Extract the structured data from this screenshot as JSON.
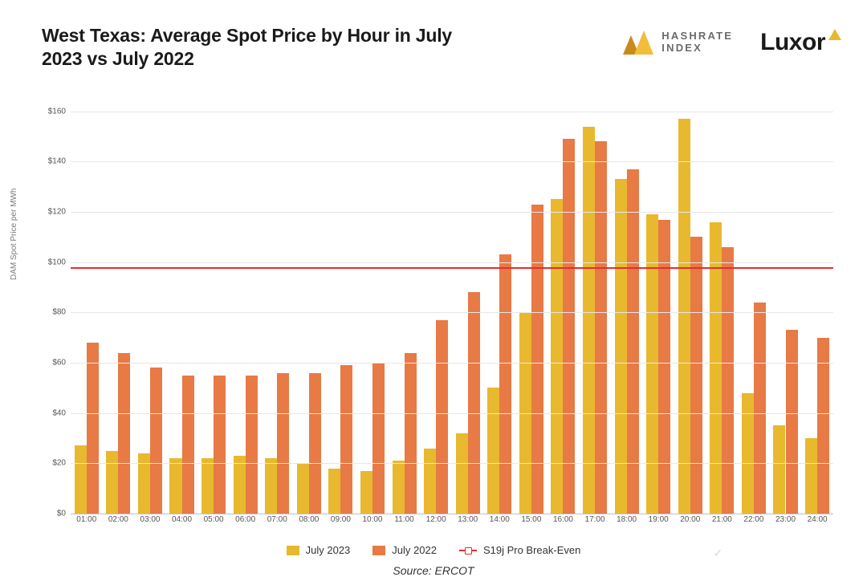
{
  "header": {
    "title": "West Texas: Average Spot Price by Hour in July 2023 vs July 2022",
    "hashrate_index_label_line1": "HASHRATE",
    "hashrate_index_label_line2": "INDEX",
    "luxor_label": "Luxor"
  },
  "chart": {
    "type": "bar",
    "ylabel": "DAM Spot Price per MWh",
    "ylim": [
      0,
      170
    ],
    "ytick_step": 20,
    "ytick_prefix": "$",
    "grid_color": "#e7e7e7",
    "background_color": "#ffffff",
    "categories": [
      "01:00",
      "02:00",
      "03:00",
      "04:00",
      "05:00",
      "06:00",
      "07:00",
      "08:00",
      "09:00",
      "10:00",
      "11:00",
      "12:00",
      "13:00",
      "14:00",
      "15:00",
      "16:00",
      "17:00",
      "18:00",
      "19:00",
      "20:00",
      "21:00",
      "22:00",
      "23:00",
      "24:00"
    ],
    "series": [
      {
        "name": "July 2023",
        "color": "#e8b92e",
        "values": [
          27,
          25,
          24,
          22,
          22,
          23,
          22,
          20,
          18,
          17,
          21,
          26,
          32,
          50,
          80,
          125,
          154,
          133,
          119,
          157,
          116,
          48,
          35,
          30
        ]
      },
      {
        "name": "July 2022",
        "color": "#e77a45",
        "values": [
          68,
          64,
          58,
          55,
          55,
          55,
          56,
          56,
          59,
          60,
          64,
          77,
          88,
          103,
          123,
          149,
          148,
          137,
          117,
          110,
          106,
          84,
          73,
          70
        ]
      }
    ],
    "reference_line": {
      "name": "S19j Pro Break-Even",
      "value": 98,
      "color": "#e03030"
    },
    "bar_width": 0.38,
    "tick_fontsize": 10,
    "ylabel_fontsize": 10
  },
  "legend": {
    "items": [
      {
        "label": "July 2023",
        "swatch": "#e8b92e"
      },
      {
        "label": "July 2022",
        "swatch": "#e77a45"
      },
      {
        "label": "S19j Pro Break-Even",
        "line": "#e03030"
      }
    ]
  },
  "source": "Source: ERCOT",
  "watermark": "Hashrate Index",
  "colors": {
    "title": "#1a1a1a",
    "hi_text": "#6b6b6b",
    "hi_tri_dark": "#c98a1a",
    "hi_tri_light": "#f2bd3a",
    "luxor_mark": "#e8b92e"
  }
}
